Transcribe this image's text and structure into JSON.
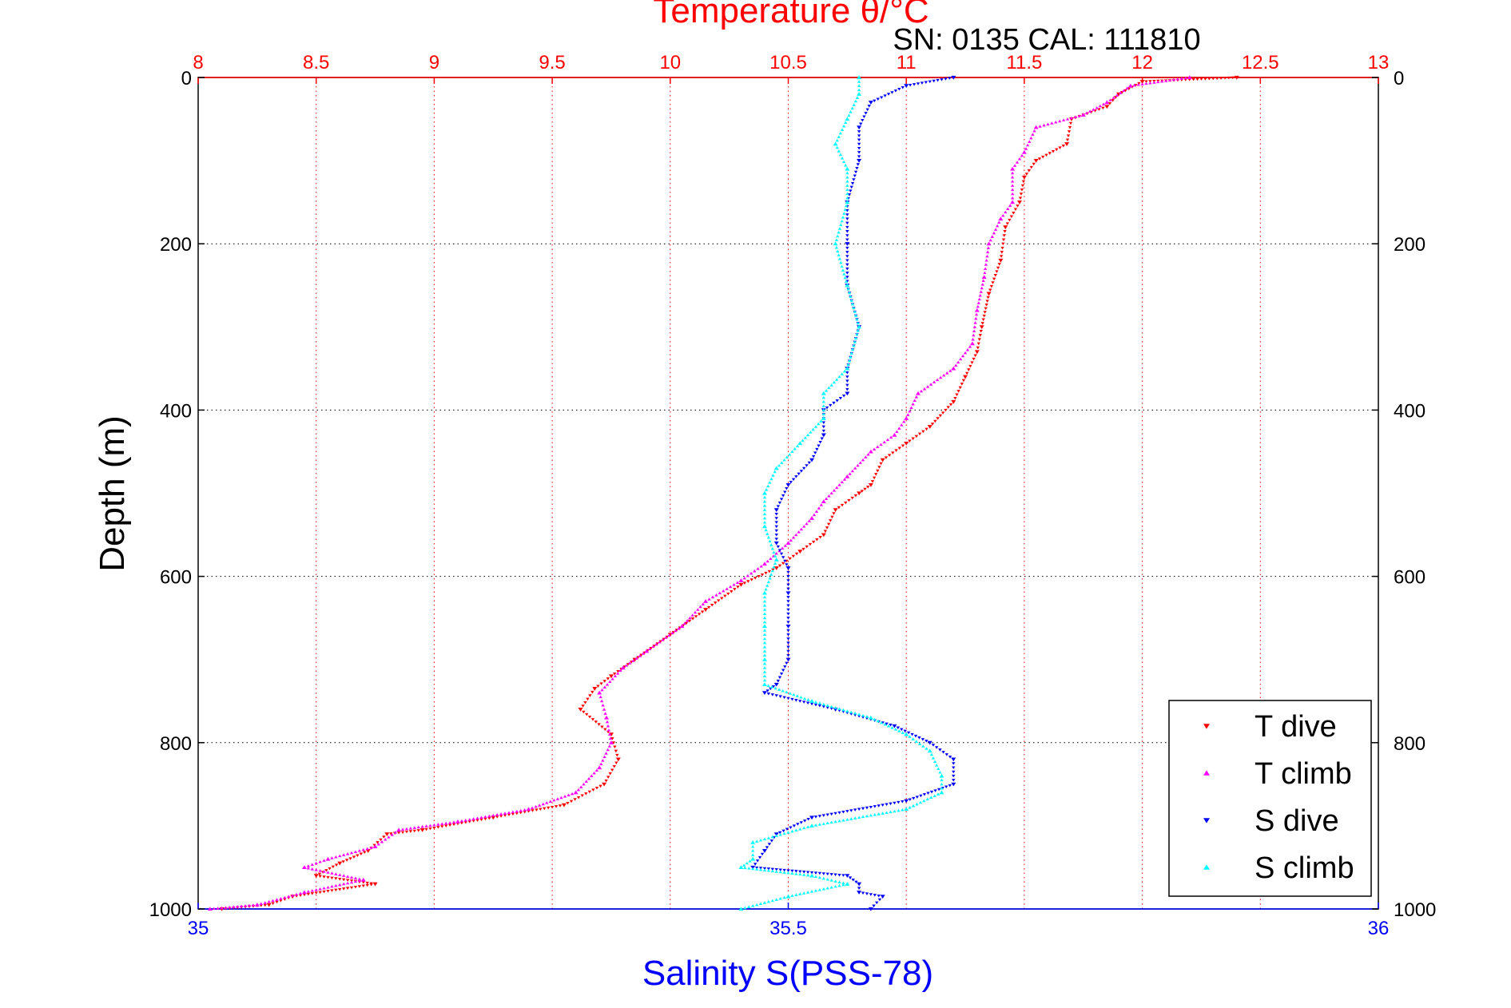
{
  "chart_data": {
    "type": "scatter",
    "title": "Temperature θ/°C",
    "subtitle": "SN: 0135  CAL: 111810",
    "xlabel_bottom": "Salinity S(PSS-78)",
    "ylabel": "Depth (m)",
    "temperature_axis": {
      "range": [
        8,
        13
      ],
      "ticks": [
        "8",
        "8.5",
        "9",
        "9.5",
        "10",
        "10.5",
        "11",
        "11.5",
        "12",
        "12.5",
        "13"
      ]
    },
    "salinity_axis": {
      "range": [
        35,
        36
      ],
      "ticks": [
        "35",
        "35.5",
        "36"
      ]
    },
    "depth_axis": {
      "range": [
        0,
        1000
      ],
      "inverted": true,
      "ticks": [
        "0",
        "200",
        "400",
        "600",
        "800",
        "1000"
      ]
    },
    "grid": true,
    "legend_position": "bottom-right",
    "series": [
      {
        "name": "T dive",
        "axis": "temperature",
        "color": "#ff0000",
        "marker": "triangle-down",
        "points": [
          [
            12.4,
            0
          ],
          [
            12.0,
            5
          ],
          [
            11.9,
            20
          ],
          [
            11.85,
            35
          ],
          [
            11.7,
            50
          ],
          [
            11.68,
            80
          ],
          [
            11.55,
            100
          ],
          [
            11.5,
            120
          ],
          [
            11.48,
            150
          ],
          [
            11.42,
            180
          ],
          [
            11.4,
            220
          ],
          [
            11.35,
            260
          ],
          [
            11.32,
            300
          ],
          [
            11.3,
            330
          ],
          [
            11.25,
            360
          ],
          [
            11.2,
            390
          ],
          [
            11.1,
            420
          ],
          [
            11.0,
            440
          ],
          [
            10.9,
            460
          ],
          [
            10.85,
            490
          ],
          [
            10.8,
            500
          ],
          [
            10.7,
            520
          ],
          [
            10.65,
            550
          ],
          [
            10.55,
            570
          ],
          [
            10.45,
            590
          ],
          [
            10.3,
            610
          ],
          [
            10.15,
            640
          ],
          [
            10.0,
            670
          ],
          [
            9.85,
            700
          ],
          [
            9.75,
            720
          ],
          [
            9.68,
            735
          ],
          [
            9.62,
            760
          ],
          [
            9.75,
            790
          ],
          [
            9.78,
            820
          ],
          [
            9.72,
            850
          ],
          [
            9.55,
            875
          ],
          [
            9.25,
            890
          ],
          [
            8.95,
            905
          ],
          [
            8.8,
            910
          ],
          [
            8.72,
            930
          ],
          [
            8.6,
            945
          ],
          [
            8.5,
            960
          ],
          [
            8.75,
            970
          ],
          [
            8.4,
            985
          ],
          [
            8.3,
            995
          ],
          [
            8.1,
            1000
          ]
        ]
      },
      {
        "name": "T climb",
        "axis": "temperature",
        "color": "#ff00ff",
        "marker": "triangle-up",
        "points": [
          [
            12.2,
            0
          ],
          [
            11.95,
            10
          ],
          [
            11.85,
            30
          ],
          [
            11.75,
            45
          ],
          [
            11.55,
            60
          ],
          [
            11.5,
            90
          ],
          [
            11.45,
            110
          ],
          [
            11.45,
            150
          ],
          [
            11.4,
            170
          ],
          [
            11.35,
            200
          ],
          [
            11.33,
            240
          ],
          [
            11.3,
            280
          ],
          [
            11.28,
            320
          ],
          [
            11.2,
            350
          ],
          [
            11.05,
            380
          ],
          [
            11.0,
            410
          ],
          [
            10.95,
            430
          ],
          [
            10.85,
            450
          ],
          [
            10.75,
            480
          ],
          [
            10.65,
            510
          ],
          [
            10.6,
            530
          ],
          [
            10.5,
            560
          ],
          [
            10.4,
            585
          ],
          [
            10.3,
            605
          ],
          [
            10.15,
            630
          ],
          [
            10.05,
            660
          ],
          [
            9.9,
            690
          ],
          [
            9.8,
            710
          ],
          [
            9.7,
            740
          ],
          [
            9.73,
            770
          ],
          [
            9.75,
            800
          ],
          [
            9.7,
            830
          ],
          [
            9.6,
            860
          ],
          [
            9.4,
            880
          ],
          [
            9.1,
            895
          ],
          [
            8.85,
            905
          ],
          [
            8.75,
            925
          ],
          [
            8.55,
            940
          ],
          [
            8.45,
            950
          ],
          [
            8.7,
            965
          ],
          [
            8.45,
            980
          ],
          [
            8.25,
            995
          ],
          [
            8.05,
            1000
          ]
        ]
      },
      {
        "name": "S dive",
        "axis": "salinity",
        "color": "#0000ff",
        "marker": "triangle-down",
        "points": [
          [
            35.64,
            0
          ],
          [
            35.6,
            10
          ],
          [
            35.57,
            30
          ],
          [
            35.56,
            60
          ],
          [
            35.56,
            100
          ],
          [
            35.55,
            150
          ],
          [
            35.55,
            200
          ],
          [
            35.55,
            250
          ],
          [
            35.56,
            300
          ],
          [
            35.55,
            350
          ],
          [
            35.55,
            380
          ],
          [
            35.53,
            400
          ],
          [
            35.53,
            430
          ],
          [
            35.52,
            460
          ],
          [
            35.5,
            490
          ],
          [
            35.49,
            520
          ],
          [
            35.49,
            560
          ],
          [
            35.5,
            590
          ],
          [
            35.5,
            620
          ],
          [
            35.5,
            660
          ],
          [
            35.5,
            700
          ],
          [
            35.49,
            730
          ],
          [
            35.48,
            740
          ],
          [
            35.54,
            760
          ],
          [
            35.59,
            780
          ],
          [
            35.62,
            800
          ],
          [
            35.64,
            820
          ],
          [
            35.64,
            850
          ],
          [
            35.6,
            870
          ],
          [
            35.52,
            890
          ],
          [
            35.49,
            910
          ],
          [
            35.48,
            930
          ],
          [
            35.47,
            950
          ],
          [
            35.55,
            960
          ],
          [
            35.56,
            970
          ],
          [
            35.56,
            980
          ],
          [
            35.58,
            985
          ],
          [
            35.57,
            1000
          ]
        ]
      },
      {
        "name": "S climb",
        "axis": "salinity",
        "color": "#00ffff",
        "marker": "triangle-up",
        "points": [
          [
            35.56,
            0
          ],
          [
            35.56,
            20
          ],
          [
            35.55,
            50
          ],
          [
            35.54,
            80
          ],
          [
            35.55,
            110
          ],
          [
            35.55,
            150
          ],
          [
            35.54,
            200
          ],
          [
            35.55,
            250
          ],
          [
            35.56,
            300
          ],
          [
            35.55,
            350
          ],
          [
            35.53,
            380
          ],
          [
            35.53,
            410
          ],
          [
            35.51,
            440
          ],
          [
            35.49,
            470
          ],
          [
            35.48,
            500
          ],
          [
            35.48,
            540
          ],
          [
            35.49,
            580
          ],
          [
            35.48,
            620
          ],
          [
            35.48,
            660
          ],
          [
            35.48,
            700
          ],
          [
            35.48,
            730
          ],
          [
            35.52,
            750
          ],
          [
            35.57,
            770
          ],
          [
            35.6,
            790
          ],
          [
            35.62,
            810
          ],
          [
            35.63,
            840
          ],
          [
            35.63,
            860
          ],
          [
            35.6,
            880
          ],
          [
            35.52,
            900
          ],
          [
            35.47,
            920
          ],
          [
            35.47,
            940
          ],
          [
            35.46,
            950
          ],
          [
            35.52,
            960
          ],
          [
            35.55,
            970
          ],
          [
            35.5,
            985
          ],
          [
            35.46,
            1000
          ]
        ]
      }
    ]
  }
}
